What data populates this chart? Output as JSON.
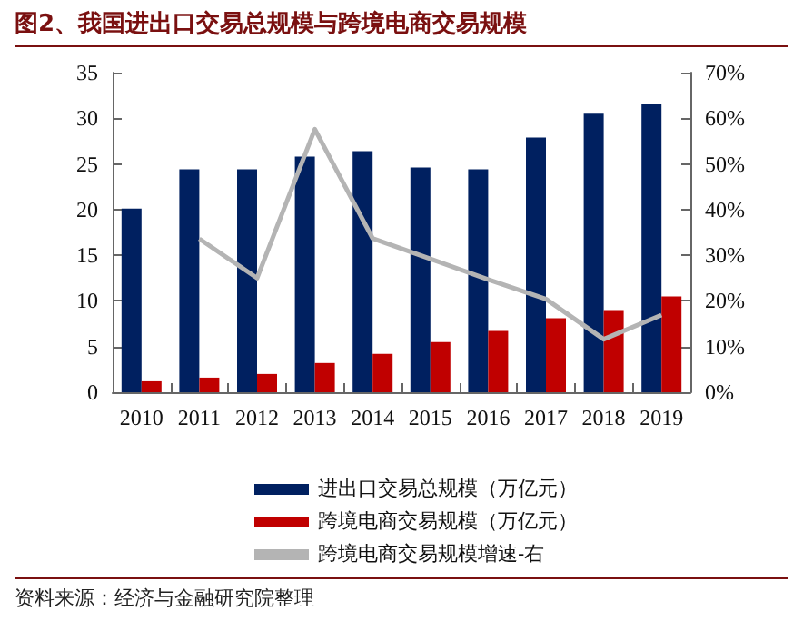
{
  "chart_data": {
    "type": "bar",
    "title": "图2、我国进出口交易总规模与跨境电商交易规模",
    "categories": [
      "2010",
      "2011",
      "2012",
      "2013",
      "2014",
      "2015",
      "2016",
      "2017",
      "2018",
      "2019"
    ],
    "series": [
      {
        "name": "进出口交易总规模（万亿元）",
        "color": "#002060",
        "values": [
          20.1,
          24.4,
          24.4,
          25.8,
          26.4,
          24.6,
          24.4,
          27.9,
          30.5,
          31.6
        ]
      },
      {
        "name": "跨境电商交易规模（万亿元）",
        "color": "#c00000",
        "values": [
          1.2,
          1.6,
          2.0,
          3.2,
          4.2,
          5.5,
          6.7,
          8.1,
          9.0,
          10.5
        ]
      },
      {
        "name": "跨境电商交易规模增速-右",
        "type": "line",
        "axis": "y2",
        "color": "#b4b4b4",
        "values": [
          null,
          33.6,
          25.0,
          57.6,
          33.7,
          29.2,
          24.7,
          20.4,
          11.6,
          16.9
        ]
      }
    ],
    "ylim": [
      0,
      35
    ],
    "yticks": [
      0,
      5,
      10,
      15,
      20,
      25,
      30,
      35
    ],
    "y2lim": [
      0,
      70
    ],
    "y2ticks": [
      {
        "value": 0,
        "label": "0%"
      },
      {
        "value": 10,
        "label": "10%"
      },
      {
        "value": 20,
        "label": "20%"
      },
      {
        "value": 30,
        "label": "30%"
      },
      {
        "value": 40,
        "label": "40%"
      },
      {
        "value": 50,
        "label": "50%"
      },
      {
        "value": 60,
        "label": "60%"
      },
      {
        "value": 70,
        "label": "70%"
      }
    ],
    "grid": false,
    "legend": "bottom",
    "marker": "none",
    "annotations": [
      "资料来源：经济与金融研究院整理"
    ]
  }
}
